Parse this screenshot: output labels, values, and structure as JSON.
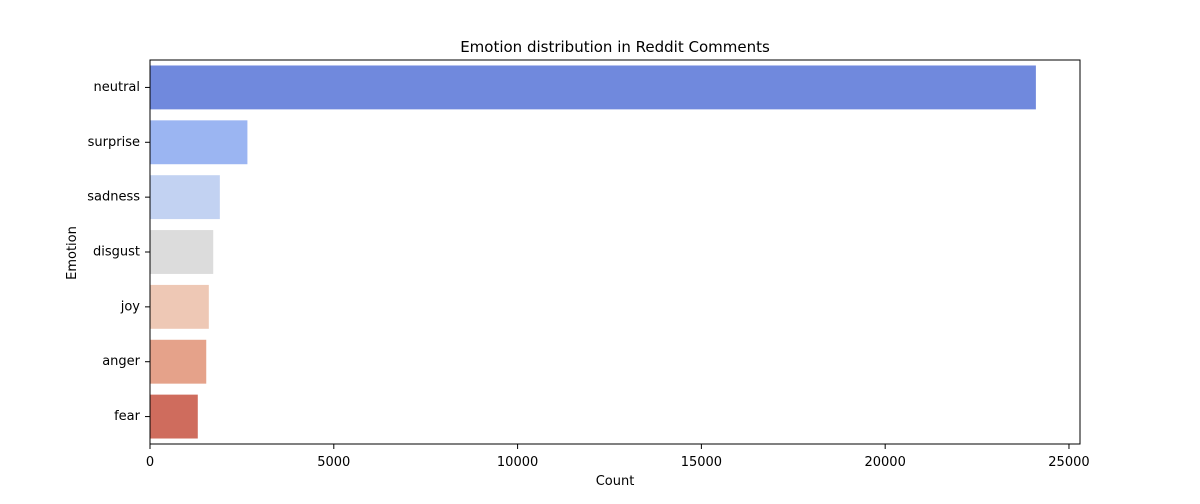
{
  "chart_data": {
    "type": "bar",
    "orientation": "horizontal",
    "title": "Emotion distribution in Reddit Comments",
    "xlabel": "Count",
    "ylabel": "Emotion",
    "categories": [
      "neutral",
      "surprise",
      "sadness",
      "disgust",
      "joy",
      "anger",
      "fear"
    ],
    "values": [
      24100,
      2650,
      1900,
      1720,
      1600,
      1530,
      1300
    ],
    "colors": [
      "#7089dd",
      "#9bb5f2",
      "#c2d2f2",
      "#dcdcdc",
      "#eec8b5",
      "#e5a28a",
      "#cf6c5d"
    ],
    "xlim": [
      0,
      25300
    ],
    "xticks": [
      0,
      5000,
      10000,
      15000,
      20000,
      25000
    ],
    "xtick_labels": [
      "0",
      "5000",
      "10000",
      "15000",
      "20000",
      "25000"
    ],
    "grid": false,
    "legend": "none"
  }
}
